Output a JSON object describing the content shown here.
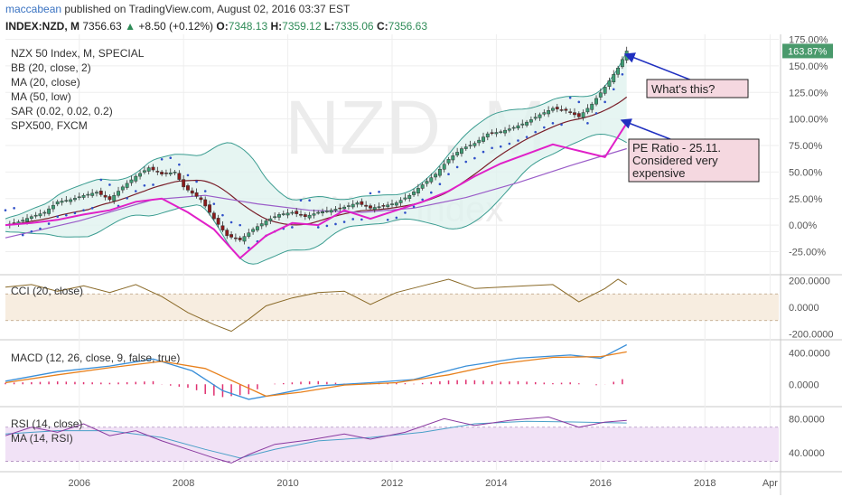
{
  "header": {
    "author": "maccabean",
    "published_text": "published on TradingView.com, August 02, 2016 03:37 EST",
    "symbol": "INDEX:NZD, M",
    "price": "7356.63",
    "change_icon": "triangle-up-icon",
    "change": "+8.50 (+0.12%)",
    "open_label": "O:",
    "open": "7348.13",
    "high_label": "H:",
    "high": "7359.12",
    "low_label": "L:",
    "low": "7335.06",
    "close_label": "C:",
    "close": "7356.63"
  },
  "watermark": {
    "symbol": "NZD, M",
    "name": "NZX 50 Index"
  },
  "legend": {
    "main": [
      "NZX 50 Index, M, SPECIAL",
      "BB (20, close, 2)",
      "MA (20, close)",
      "MA (50, low)",
      "SAR (0.02, 0.02, 0.2)",
      "SPX500, FXCM"
    ],
    "cci": [
      "CCI (20, close)"
    ],
    "macd": [
      "MACD (12, 26, close, 9, false, true)"
    ],
    "rsi": [
      "RSI (14, close)",
      "MA (14, RSI)"
    ]
  },
  "annotations": [
    {
      "text": [
        "What's this?"
      ]
    },
    {
      "text": [
        "PE Ratio - 25.11.",
        "Considered very",
        "expensive"
      ]
    }
  ],
  "colors": {
    "up": "#3c9e74",
    "down": "#8b1a1a",
    "spx": "#e020c8",
    "ma20": "#7a1f2a",
    "ma50": "#9a5cc8",
    "bb": "#3a9c90",
    "bb_fill": "#e0f2ef",
    "sar": "#3050c8",
    "cci": "#8a6a28",
    "cci_band": "#f7ede0",
    "macd": "#3a8fd8",
    "signal": "#e8801c",
    "hist": "#e03070",
    "rsi": "#8a3aa0",
    "rsi_ma": "#4aa0c8",
    "rsi_band": "#f1e2f6",
    "arrow": "#2030c0",
    "note_bg": "#f5d8e0",
    "last_badge": "#4a9a6c"
  },
  "chart_data": [
    {
      "type": "candlestick",
      "title": "NZX 50 Index, M, SPECIAL",
      "x_axis": {
        "type": "date",
        "range": [
          "2004-08",
          "2019-06"
        ],
        "tick_labels": [
          "2006",
          "2008",
          "2010",
          "2012",
          "2014",
          "2016",
          "2018",
          "Apr"
        ]
      },
      "y_axis": {
        "unit": "percent",
        "range": [
          -45,
          178
        ],
        "tick_labels": [
          "175.00%",
          "150.00%",
          "125.00%",
          "100.00%",
          "75.00%",
          "50.00%",
          "25.00%",
          "0.00%",
          "-25.00%"
        ]
      },
      "last_value_label": "163.87%",
      "nzx_monthly_close_percent": [
        {
          "date": "2004-08",
          "v": 0
        },
        {
          "date": "2004-11",
          "v": 3
        },
        {
          "date": "2005-02",
          "v": 8
        },
        {
          "date": "2005-05",
          "v": 12
        },
        {
          "date": "2005-08",
          "v": 22
        },
        {
          "date": "2005-11",
          "v": 24
        },
        {
          "date": "2006-02",
          "v": 28
        },
        {
          "date": "2006-05",
          "v": 31
        },
        {
          "date": "2006-08",
          "v": 24
        },
        {
          "date": "2006-11",
          "v": 36
        },
        {
          "date": "2007-02",
          "v": 46
        },
        {
          "date": "2007-05",
          "v": 54
        },
        {
          "date": "2007-08",
          "v": 48
        },
        {
          "date": "2007-11",
          "v": 50
        },
        {
          "date": "2008-01",
          "v": 36
        },
        {
          "date": "2008-05",
          "v": 24
        },
        {
          "date": "2008-08",
          "v": 6
        },
        {
          "date": "2008-11",
          "v": -10
        },
        {
          "date": "2009-02",
          "v": -14
        },
        {
          "date": "2009-05",
          "v": -4
        },
        {
          "date": "2009-08",
          "v": 4
        },
        {
          "date": "2009-11",
          "v": 10
        },
        {
          "date": "2010-02",
          "v": 12
        },
        {
          "date": "2010-05",
          "v": 8
        },
        {
          "date": "2010-08",
          "v": 12
        },
        {
          "date": "2010-11",
          "v": 14
        },
        {
          "date": "2011-02",
          "v": 17
        },
        {
          "date": "2011-05",
          "v": 21
        },
        {
          "date": "2011-08",
          "v": 16
        },
        {
          "date": "2011-11",
          "v": 18
        },
        {
          "date": "2012-02",
          "v": 21
        },
        {
          "date": "2012-05",
          "v": 28
        },
        {
          "date": "2012-08",
          "v": 38
        },
        {
          "date": "2012-11",
          "v": 48
        },
        {
          "date": "2013-02",
          "v": 62
        },
        {
          "date": "2013-05",
          "v": 72
        },
        {
          "date": "2013-08",
          "v": 77
        },
        {
          "date": "2013-11",
          "v": 86
        },
        {
          "date": "2014-02",
          "v": 88
        },
        {
          "date": "2014-05",
          "v": 92
        },
        {
          "date": "2014-08",
          "v": 97
        },
        {
          "date": "2014-11",
          "v": 104
        },
        {
          "date": "2015-02",
          "v": 110
        },
        {
          "date": "2015-05",
          "v": 108
        },
        {
          "date": "2015-08",
          "v": 102
        },
        {
          "date": "2015-11",
          "v": 114
        },
        {
          "date": "2016-02",
          "v": 130
        },
        {
          "date": "2016-05",
          "v": 148
        },
        {
          "date": "2016-07",
          "v": 164
        }
      ],
      "spx500_percent": [
        {
          "date": "2004-08",
          "v": 0
        },
        {
          "date": "2005-02",
          "v": 2
        },
        {
          "date": "2005-08",
          "v": 5
        },
        {
          "date": "2006-02",
          "v": 10
        },
        {
          "date": "2006-08",
          "v": 14
        },
        {
          "date": "2007-02",
          "v": 22
        },
        {
          "date": "2007-08",
          "v": 25
        },
        {
          "date": "2008-02",
          "v": 12
        },
        {
          "date": "2008-08",
          "v": -4
        },
        {
          "date": "2009-02",
          "v": -31
        },
        {
          "date": "2009-08",
          "v": -10
        },
        {
          "date": "2010-02",
          "v": 2
        },
        {
          "date": "2010-08",
          "v": 0
        },
        {
          "date": "2011-02",
          "v": 14
        },
        {
          "date": "2011-08",
          "v": 6
        },
        {
          "date": "2012-02",
          "v": 14
        },
        {
          "date": "2012-08",
          "v": 22
        },
        {
          "date": "2013-02",
          "v": 32
        },
        {
          "date": "2013-08",
          "v": 46
        },
        {
          "date": "2014-02",
          "v": 58
        },
        {
          "date": "2014-08",
          "v": 67
        },
        {
          "date": "2015-02",
          "v": 76
        },
        {
          "date": "2015-08",
          "v": 70
        },
        {
          "date": "2016-02",
          "v": 64
        },
        {
          "date": "2016-07",
          "v": 96
        }
      ],
      "ma50_low_percent": [
        {
          "date": "2004-08",
          "v": -12
        },
        {
          "date": "2006-01",
          "v": 4
        },
        {
          "date": "2007-06",
          "v": 24
        },
        {
          "date": "2008-06",
          "v": 28
        },
        {
          "date": "2009-06",
          "v": 20
        },
        {
          "date": "2010-06",
          "v": 14
        },
        {
          "date": "2011-06",
          "v": 12
        },
        {
          "date": "2012-06",
          "v": 16
        },
        {
          "date": "2013-06",
          "v": 26
        },
        {
          "date": "2014-06",
          "v": 40
        },
        {
          "date": "2015-06",
          "v": 56
        },
        {
          "date": "2016-07",
          "v": 72
        }
      ]
    },
    {
      "type": "line",
      "title": "CCI (20, close)",
      "y_axis": {
        "range": [
          -230,
          230
        ],
        "tick_labels": [
          "200.0000",
          "0.0000",
          "-200.0000"
        ],
        "band": [
          -100,
          100
        ]
      },
      "series": [
        {
          "name": "CCI (20, close)",
          "values": [
            {
              "date": "2004-08",
              "v": 150
            },
            {
              "date": "2005-02",
              "v": 170
            },
            {
              "date": "2005-08",
              "v": 120
            },
            {
              "date": "2006-02",
              "v": 160
            },
            {
              "date": "2006-08",
              "v": 110
            },
            {
              "date": "2007-02",
              "v": 170
            },
            {
              "date": "2007-08",
              "v": 80
            },
            {
              "date": "2008-02",
              "v": -40
            },
            {
              "date": "2008-08",
              "v": -130
            },
            {
              "date": "2008-12",
              "v": -180
            },
            {
              "date": "2009-04",
              "v": -90
            },
            {
              "date": "2009-08",
              "v": 10
            },
            {
              "date": "2010-02",
              "v": 70
            },
            {
              "date": "2010-08",
              "v": 110
            },
            {
              "date": "2011-02",
              "v": 120
            },
            {
              "date": "2011-08",
              "v": 20
            },
            {
              "date": "2012-02",
              "v": 110
            },
            {
              "date": "2012-08",
              "v": 160
            },
            {
              "date": "2013-02",
              "v": 210
            },
            {
              "date": "2013-08",
              "v": 140
            },
            {
              "date": "2014-02",
              "v": 150
            },
            {
              "date": "2014-08",
              "v": 160
            },
            {
              "date": "2015-02",
              "v": 170
            },
            {
              "date": "2015-08",
              "v": 40
            },
            {
              "date": "2016-02",
              "v": 140
            },
            {
              "date": "2016-05",
              "v": 210
            },
            {
              "date": "2016-07",
              "v": 170
            }
          ]
        }
      ]
    },
    {
      "type": "line",
      "title": "MACD (12, 26, close, 9, false, true)",
      "y_axis": {
        "range": [
          -260,
          540
        ],
        "tick_labels": [
          "400.0000",
          "0.0000"
        ]
      },
      "series": [
        {
          "name": "MACD",
          "values": [
            {
              "date": "2004-08",
              "v": 40
            },
            {
              "date": "2005-08",
              "v": 160
            },
            {
              "date": "2006-08",
              "v": 230
            },
            {
              "date": "2007-06",
              "v": 320
            },
            {
              "date": "2008-03",
              "v": 170
            },
            {
              "date": "2008-10",
              "v": -80
            },
            {
              "date": "2009-04",
              "v": -190
            },
            {
              "date": "2009-11",
              "v": -120
            },
            {
              "date": "2010-08",
              "v": -20
            },
            {
              "date": "2011-08",
              "v": 20
            },
            {
              "date": "2012-06",
              "v": 60
            },
            {
              "date": "2013-06",
              "v": 230
            },
            {
              "date": "2014-06",
              "v": 330
            },
            {
              "date": "2015-06",
              "v": 370
            },
            {
              "date": "2016-01",
              "v": 330
            },
            {
              "date": "2016-07",
              "v": 500
            }
          ]
        },
        {
          "name": "Signal",
          "values": [
            {
              "date": "2004-08",
              "v": 20
            },
            {
              "date": "2005-08",
              "v": 120
            },
            {
              "date": "2006-08",
              "v": 210
            },
            {
              "date": "2007-08",
              "v": 290
            },
            {
              "date": "2008-06",
              "v": 200
            },
            {
              "date": "2009-02",
              "v": 0
            },
            {
              "date": "2009-08",
              "v": -150
            },
            {
              "date": "2010-04",
              "v": -100
            },
            {
              "date": "2011-02",
              "v": -10
            },
            {
              "date": "2012-02",
              "v": 20
            },
            {
              "date": "2013-02",
              "v": 120
            },
            {
              "date": "2014-02",
              "v": 260
            },
            {
              "date": "2015-02",
              "v": 340
            },
            {
              "date": "2016-01",
              "v": 350
            },
            {
              "date": "2016-07",
              "v": 410
            }
          ]
        }
      ]
    },
    {
      "type": "line",
      "title": "RSI (14, close)",
      "y_axis": {
        "range": [
          20,
          92
        ],
        "tick_labels": [
          "80.0000",
          "40.0000"
        ],
        "band": [
          30,
          70
        ]
      },
      "series": [
        {
          "name": "RSI (14, close)",
          "values": [
            {
              "date": "2004-08",
              "v": 60
            },
            {
              "date": "2005-02",
              "v": 70
            },
            {
              "date": "2005-08",
              "v": 64
            },
            {
              "date": "2006-02",
              "v": 74
            },
            {
              "date": "2006-08",
              "v": 60
            },
            {
              "date": "2007-02",
              "v": 66
            },
            {
              "date": "2007-08",
              "v": 54
            },
            {
              "date": "2008-02",
              "v": 44
            },
            {
              "date": "2008-08",
              "v": 34
            },
            {
              "date": "2008-12",
              "v": 28
            },
            {
              "date": "2009-04",
              "v": 38
            },
            {
              "date": "2009-10",
              "v": 50
            },
            {
              "date": "2010-06",
              "v": 55
            },
            {
              "date": "2011-02",
              "v": 62
            },
            {
              "date": "2011-08",
              "v": 56
            },
            {
              "date": "2012-04",
              "v": 64
            },
            {
              "date": "2013-01",
              "v": 80
            },
            {
              "date": "2013-08",
              "v": 72
            },
            {
              "date": "2014-04",
              "v": 78
            },
            {
              "date": "2015-01",
              "v": 82
            },
            {
              "date": "2015-08",
              "v": 70
            },
            {
              "date": "2016-02",
              "v": 76
            },
            {
              "date": "2016-07",
              "v": 78
            }
          ]
        },
        {
          "name": "MA (14, RSI)",
          "values": [
            {
              "date": "2004-08",
              "v": 62
            },
            {
              "date": "2005-08",
              "v": 66
            },
            {
              "date": "2006-08",
              "v": 66
            },
            {
              "date": "2007-08",
              "v": 58
            },
            {
              "date": "2008-06",
              "v": 44
            },
            {
              "date": "2009-02",
              "v": 34
            },
            {
              "date": "2009-10",
              "v": 44
            },
            {
              "date": "2010-08",
              "v": 54
            },
            {
              "date": "2011-08",
              "v": 58
            },
            {
              "date": "2012-08",
              "v": 64
            },
            {
              "date": "2013-08",
              "v": 74
            },
            {
              "date": "2014-08",
              "v": 77
            },
            {
              "date": "2015-08",
              "v": 76
            },
            {
              "date": "2016-07",
              "v": 75
            }
          ]
        }
      ]
    }
  ]
}
